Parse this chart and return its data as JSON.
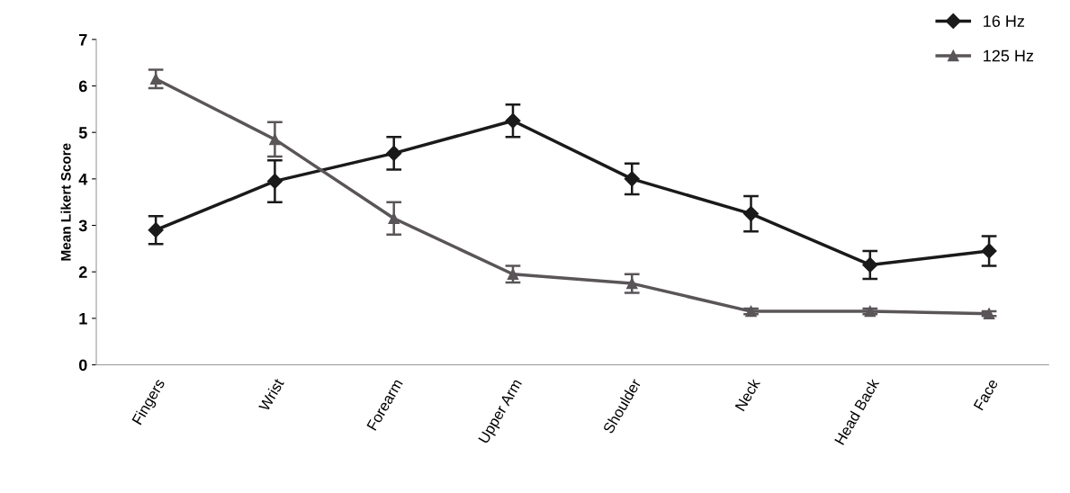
{
  "chart_data": {
    "type": "line",
    "ylabel": "Mean Likert Score",
    "categories": [
      "Fingers",
      "Wrist",
      "Forearm",
      "Upper Arm",
      "Shoulder",
      "Neck",
      "Head Back",
      "Face"
    ],
    "series": [
      {
        "name": "16 Hz",
        "color": "#1a1a1a",
        "marker": "diamond",
        "values": [
          2.9,
          3.95,
          4.55,
          5.25,
          4.0,
          3.25,
          2.15,
          2.45
        ],
        "errors": [
          0.3,
          0.45,
          0.35,
          0.35,
          0.33,
          0.38,
          0.3,
          0.32
        ]
      },
      {
        "name": "125 Hz",
        "color": "#5a5558",
        "marker": "triangle",
        "values": [
          6.15,
          4.85,
          3.15,
          1.95,
          1.75,
          1.15,
          1.15,
          1.1
        ],
        "errors": [
          0.2,
          0.37,
          0.35,
          0.18,
          0.2,
          0.06,
          0.06,
          0.05
        ]
      }
    ],
    "ylim": [
      0,
      7
    ],
    "yticks": [
      0,
      1,
      2,
      3,
      4,
      5,
      6,
      7
    ],
    "grid": false,
    "legend": "top right",
    "line_style": "solid"
  }
}
